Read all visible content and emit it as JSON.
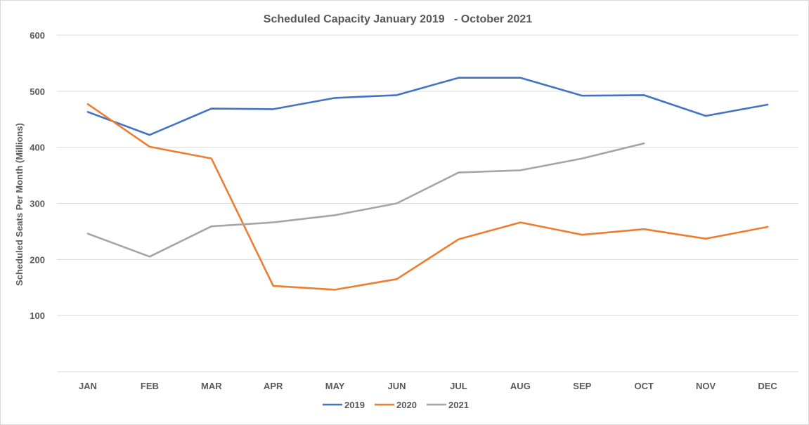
{
  "chart_data": {
    "type": "line",
    "title": "Scheduled Capacity January 2019   - October 2021",
    "xlabel": "",
    "ylabel": "Scheduled Seats Per Month (Millions)",
    "categories": [
      "JAN",
      "FEB",
      "MAR",
      "APR",
      "MAY",
      "JUN",
      "JUL",
      "AUG",
      "SEP",
      "OCT",
      "NOV",
      "DEC"
    ],
    "y_ticks": [
      "100",
      "200",
      "300",
      "400",
      "500",
      "600"
    ],
    "ylim": [
      0,
      600
    ],
    "grid": true,
    "legend_position": "bottom",
    "series": [
      {
        "name": "2019",
        "color": "#4472c4",
        "values": [
          463,
          422,
          469,
          468,
          488,
          493,
          524,
          524,
          492,
          493,
          456,
          476
        ]
      },
      {
        "name": "2020",
        "color": "#ed7d31",
        "values": [
          477,
          401,
          380,
          153,
          146,
          165,
          236,
          266,
          244,
          254,
          237,
          258
        ]
      },
      {
        "name": "2021",
        "color": "#a5a5a5",
        "values": [
          246,
          205,
          259,
          266,
          279,
          300,
          355,
          359,
          380,
          407,
          null,
          null
        ]
      }
    ]
  }
}
